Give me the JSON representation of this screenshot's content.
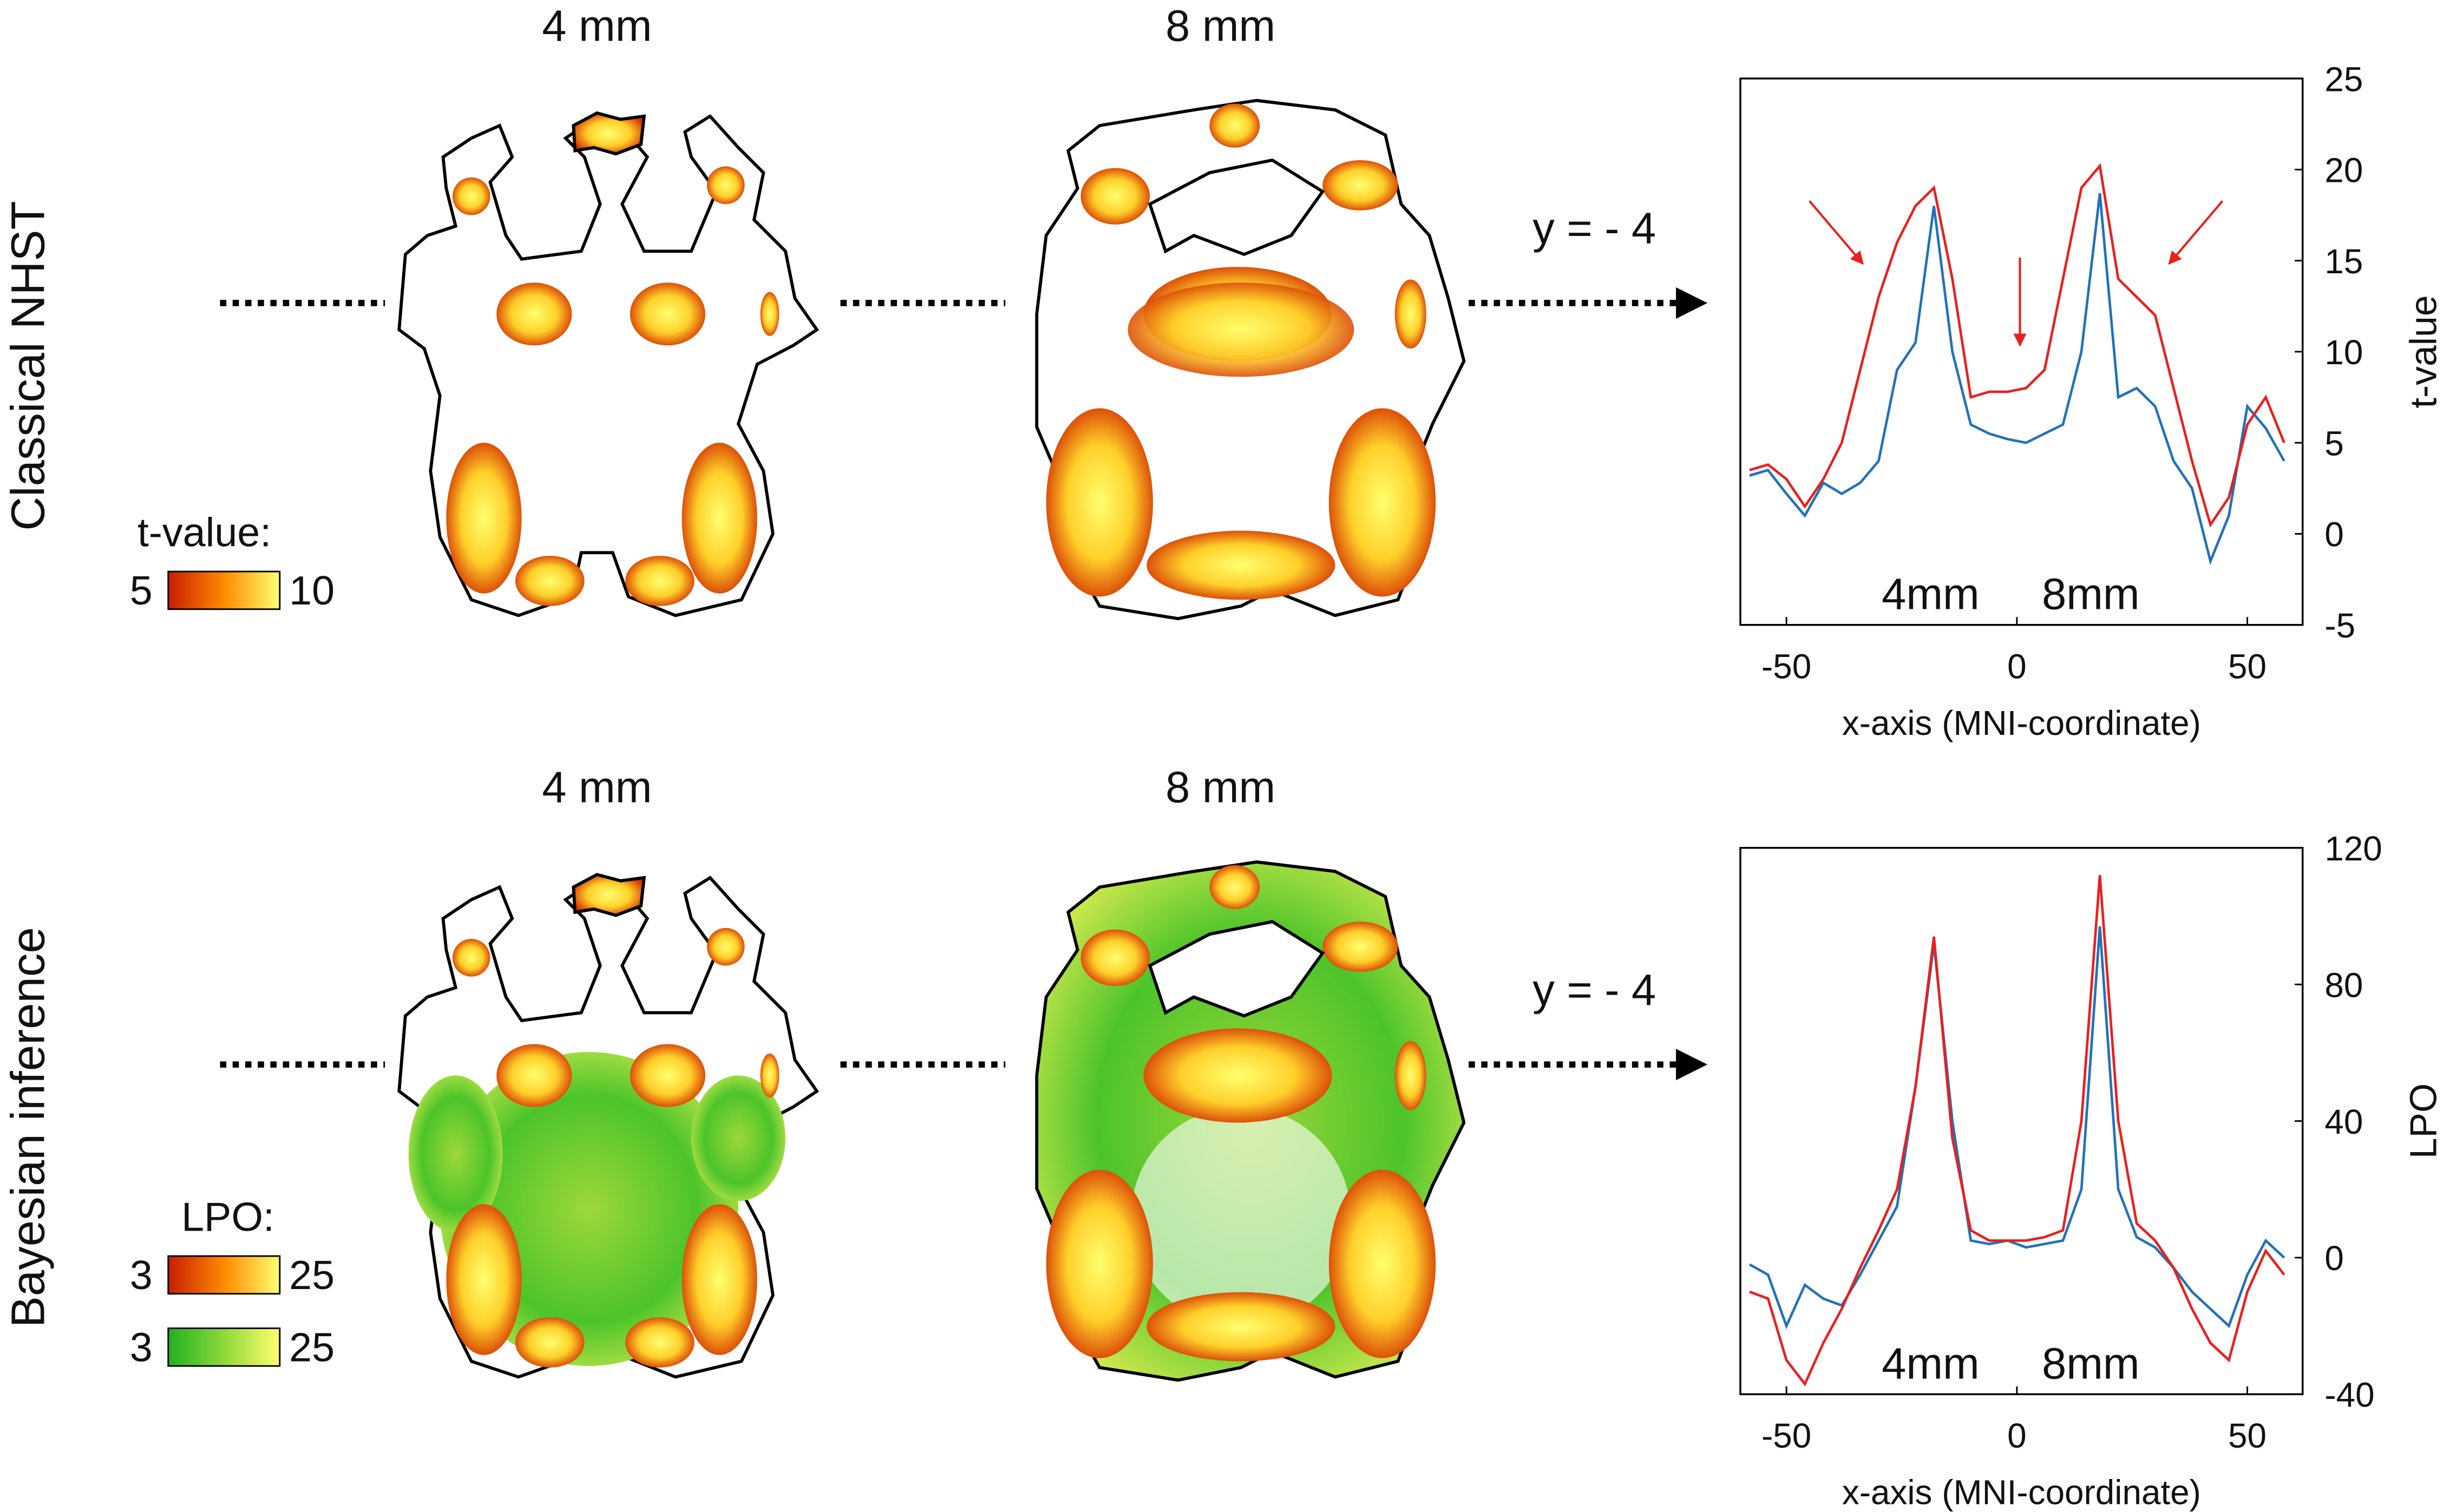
{
  "rows": [
    {
      "label": "Classical NHST",
      "columns": [
        "4 mm",
        "8 mm"
      ],
      "slice": "y = - 4",
      "colorbar_title": "t-value:",
      "colorbars": [
        {
          "min": 5,
          "max": 10,
          "colors": [
            "#c81e00",
            "#ff8a00",
            "#ffff70"
          ]
        }
      ]
    },
    {
      "label": "Bayesian inference",
      "columns": [
        "4 mm",
        "8 mm"
      ],
      "slice": "y = - 4",
      "colorbar_title": "LPO:",
      "colorbars": [
        {
          "min": 3,
          "max": 25,
          "colors": [
            "#c81e00",
            "#ff8a00",
            "#ffff70"
          ]
        },
        {
          "min": 3,
          "max": 25,
          "colors": [
            "#1fb21f",
            "#8fd83a",
            "#ffff70"
          ]
        }
      ]
    }
  ],
  "chart_data": [
    {
      "type": "line",
      "xlabel": "x-axis (MNI-coordinate)",
      "ylabel": "t-value",
      "y_axis_side": "right",
      "x": [
        -58,
        -54,
        -50,
        -46,
        -42,
        -38,
        -34,
        -30,
        -26,
        -22,
        -18,
        -14,
        -10,
        -6,
        -2,
        2,
        6,
        10,
        14,
        18,
        22,
        26,
        30,
        34,
        38,
        42,
        46,
        50,
        54,
        58
      ],
      "xlim": [
        -60,
        62
      ],
      "ylim": [
        -5,
        25
      ],
      "xticks": [
        -50,
        0,
        50
      ],
      "yticks": [
        -5,
        0,
        5,
        10,
        15,
        20,
        25
      ],
      "series": [
        {
          "name": "4mm",
          "color": "#2271b8",
          "values": [
            3.2,
            3.5,
            2.2,
            1,
            2.8,
            2.2,
            2.8,
            4,
            9,
            10.5,
            18,
            10,
            6,
            5.5,
            5.2,
            5,
            5.5,
            6,
            10,
            18.7,
            7.5,
            8,
            7,
            4,
            2.5,
            -1.5,
            1,
            7,
            5.8,
            4
          ]
        },
        {
          "name": "8mm",
          "color": "#e8201e",
          "values": [
            3.5,
            3.8,
            3,
            1.5,
            3,
            5,
            9,
            13,
            16,
            18,
            19,
            14,
            7.5,
            7.8,
            7.8,
            8,
            9,
            14,
            19,
            20.2,
            14,
            13,
            12,
            8,
            4,
            0.5,
            2,
            6,
            7.5,
            5
          ]
        }
      ]
    },
    {
      "type": "line",
      "xlabel": "x-axis (MNI-coordinate)",
      "ylabel": "LPO",
      "y_axis_side": "right",
      "x": [
        -58,
        -54,
        -50,
        -46,
        -42,
        -38,
        -34,
        -30,
        -26,
        -22,
        -18,
        -14,
        -10,
        -6,
        -2,
        2,
        6,
        10,
        14,
        18,
        22,
        26,
        30,
        34,
        38,
        42,
        46,
        50,
        54,
        58
      ],
      "xlim": [
        -60,
        62
      ],
      "ylim": [
        -40,
        120
      ],
      "xticks": [
        -50,
        0,
        50
      ],
      "yticks": [
        -40,
        0,
        40,
        80,
        120
      ],
      "series": [
        {
          "name": "4mm",
          "color": "#2271b8",
          "values": [
            -2,
            -5,
            -20,
            -8,
            -12,
            -14,
            -5,
            5,
            15,
            50,
            92,
            40,
            5,
            4,
            5,
            3,
            4,
            5,
            20,
            97,
            20,
            6,
            3,
            -3,
            -10,
            -15,
            -20,
            -5,
            5,
            0
          ]
        },
        {
          "name": "8mm",
          "color": "#e8201e",
          "values": [
            -10,
            -12,
            -30,
            -37,
            -25,
            -15,
            -3,
            8,
            20,
            50,
            94,
            35,
            8,
            5,
            5,
            5,
            6,
            8,
            40,
            112,
            40,
            10,
            5,
            -3,
            -15,
            -25,
            -30,
            -10,
            2,
            -5
          ]
        }
      ]
    }
  ]
}
